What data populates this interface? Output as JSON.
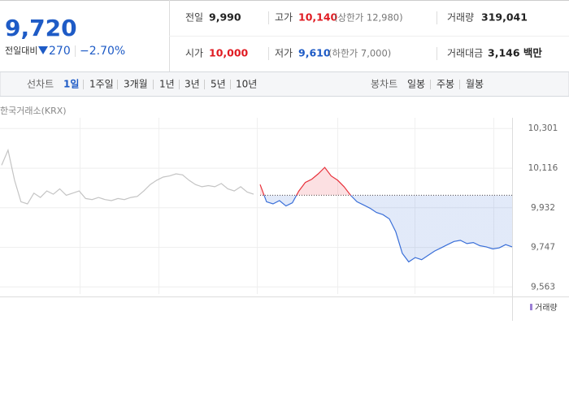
{
  "header": {
    "price": "9,720",
    "change_label": "전일대비",
    "change": "270",
    "change_pct": "−2.70%",
    "stats": [
      {
        "label": "전일",
        "value": "9,990"
      },
      {
        "label": "고가",
        "value": "10,140",
        "note": "(상한가 12,980)"
      },
      {
        "label": "거래량",
        "value": "319,041"
      },
      {
        "label": "시가",
        "value": "10,000"
      },
      {
        "label": "저가",
        "value": "9,610",
        "note": "(하한가 7,000)"
      },
      {
        "label": "거래대금",
        "value": "3,146 백만"
      }
    ]
  },
  "tabs": {
    "line_label": "선차트",
    "line": [
      "1일",
      "1주일",
      "3개월",
      "1년",
      "3년",
      "5년",
      "10년"
    ],
    "candle_label": "봉차트",
    "candle": [
      "일봉",
      "주봉",
      "월봉"
    ]
  },
  "chart_data": {
    "type": "line",
    "source": "한국거래소(KRX)",
    "volume_label": "거래량",
    "ylim": [
      9530,
      10370
    ],
    "yticks": [
      {
        "value": 9563,
        "label": "9,563"
      },
      {
        "value": 9747,
        "label": "9,747"
      },
      {
        "value": 9932,
        "label": "9,932"
      },
      {
        "value": 10116,
        "label": "10,116"
      },
      {
        "value": 10301,
        "label": "10,301"
      }
    ],
    "reference_line": 9990,
    "up_color": "#e8313b",
    "down_color": "#3a6fd8",
    "grid": true,
    "series": [
      {
        "color": "#c4c4c4",
        "values": [
          10130,
          10200,
          10060,
          9960,
          9950,
          10000,
          9980,
          10010,
          9995,
          10020,
          9990,
          10000,
          10010,
          9975,
          9970,
          9980,
          9970,
          9965,
          9975,
          9970,
          9980,
          9985,
          10010,
          10040,
          10060,
          10075,
          10080,
          10090,
          10085,
          10060,
          10040,
          10030,
          10035,
          10030,
          10045,
          10020,
          10010,
          10030,
          10005,
          9995,
          null,
          null,
          null,
          null,
          null,
          null,
          null,
          null,
          null,
          null,
          null,
          null,
          null,
          null,
          null,
          null,
          null,
          null,
          null,
          null,
          null,
          null,
          null,
          null,
          null,
          null,
          null,
          null,
          null,
          null,
          null,
          null,
          null,
          null,
          null,
          null,
          null,
          null,
          null,
          null
        ]
      },
      {
        "color": "split",
        "values": [
          null,
          null,
          null,
          null,
          null,
          null,
          null,
          null,
          null,
          null,
          null,
          null,
          null,
          null,
          null,
          null,
          null,
          null,
          null,
          null,
          null,
          null,
          null,
          null,
          null,
          null,
          null,
          null,
          null,
          null,
          null,
          null,
          null,
          null,
          null,
          null,
          null,
          null,
          null,
          null,
          10040,
          9960,
          9950,
          9965,
          9940,
          9955,
          10010,
          10050,
          10065,
          10090,
          10120,
          10080,
          10060,
          10030,
          9990,
          9960,
          9945,
          9930,
          9910,
          9900,
          9880,
          9820,
          9720,
          9680,
          9700,
          9690,
          9710,
          9730,
          9745,
          9760,
          9775,
          9780,
          9765,
          9770,
          9755,
          9750,
          9740,
          9745,
          9760,
          9750
        ]
      }
    ]
  }
}
